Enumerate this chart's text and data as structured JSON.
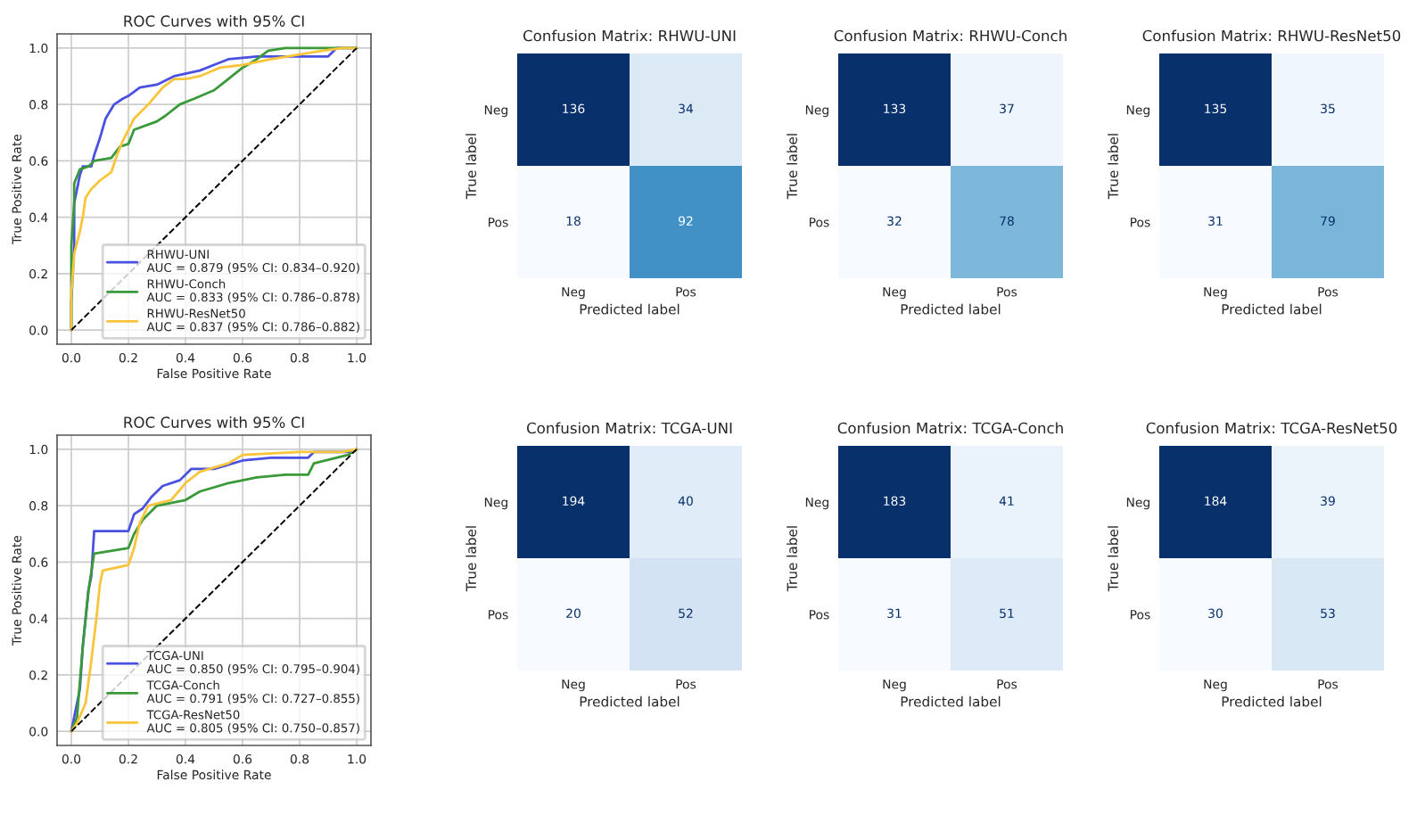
{
  "chart_data": [
    {
      "type": "line",
      "title": "ROC Curves with 95% CI",
      "xlabel": "False Positive Rate",
      "ylabel": "True Positive Rate",
      "xlim": [
        -0.05,
        1.05
      ],
      "ylim": [
        -0.05,
        1.05
      ],
      "xticks": [
        {
          "value": 0,
          "label": "0.0"
        },
        {
          "value": 0.2,
          "label": "0.2"
        },
        {
          "value": 0.4,
          "label": "0.4"
        },
        {
          "value": 0.6,
          "label": "0.6"
        },
        {
          "value": 0.8,
          "label": "0.8"
        },
        {
          "value": 1,
          "label": "1.0"
        }
      ],
      "yticks": [
        {
          "value": 0,
          "label": "0.0"
        },
        {
          "value": 0.2,
          "label": "0.2"
        },
        {
          "value": 0.4,
          "label": "0.4"
        },
        {
          "value": 0.6,
          "label": "0.6"
        },
        {
          "value": 0.8,
          "label": "0.8"
        },
        {
          "value": 1,
          "label": "1.0"
        }
      ],
      "grid": true,
      "legend": "bottom right",
      "series": [
        {
          "name": "RHWU-UNI\nAUC = 0.879 (95% CI: 0.834–0.920)",
          "color": "#4a50e0",
          "x": [
            0,
            0,
            0.01,
            0.01,
            0.02,
            0.03,
            0.04,
            0.07,
            0.08,
            0.1,
            0.12,
            0.15,
            0.18,
            0.2,
            0.24,
            0.3,
            0.36,
            0.45,
            0.5,
            0.55,
            0.65,
            0.8,
            0.9,
            0.93,
            1
          ],
          "values": [
            0,
            0.1,
            0.3,
            0.45,
            0.5,
            0.55,
            0.58,
            0.58,
            0.62,
            0.68,
            0.75,
            0.8,
            0.82,
            0.83,
            0.86,
            0.87,
            0.9,
            0.92,
            0.94,
            0.96,
            0.97,
            0.97,
            0.97,
            1,
            1
          ]
        },
        {
          "name": "RHWU-Conch\nAUC = 0.833 (95% CI: 0.786–0.878)",
          "color": "#3a9a3a",
          "x": [
            0,
            0,
            0.01,
            0.01,
            0.03,
            0.06,
            0.08,
            0.14,
            0.17,
            0.2,
            0.22,
            0.3,
            0.33,
            0.38,
            0.43,
            0.5,
            0.55,
            0.6,
            0.65,
            0.69,
            0.75,
            1
          ],
          "values": [
            0,
            0.3,
            0.45,
            0.52,
            0.57,
            0.58,
            0.6,
            0.61,
            0.65,
            0.66,
            0.71,
            0.74,
            0.76,
            0.8,
            0.82,
            0.85,
            0.89,
            0.93,
            0.96,
            0.99,
            1,
            1
          ]
        },
        {
          "name": "RHWU-ResNet50\nAUC = 0.837 (95% CI: 0.786–0.882)",
          "color": "#f8c53a",
          "x": [
            0,
            0,
            0.01,
            0.03,
            0.04,
            0.05,
            0.07,
            0.1,
            0.14,
            0.16,
            0.18,
            0.2,
            0.22,
            0.27,
            0.32,
            0.36,
            0.4,
            0.45,
            0.52,
            0.6,
            0.7,
            0.88,
            0.95,
            1
          ],
          "values": [
            0,
            0.13,
            0.27,
            0.35,
            0.4,
            0.47,
            0.5,
            0.53,
            0.56,
            0.62,
            0.67,
            0.71,
            0.75,
            0.8,
            0.86,
            0.89,
            0.89,
            0.9,
            0.93,
            0.94,
            0.96,
            0.99,
            1,
            1
          ]
        },
        {
          "color": "#000000",
          "line_style": "dashed",
          "x": [
            0,
            1
          ],
          "values": [
            0,
            1
          ]
        }
      ]
    },
    {
      "type": "heatmap",
      "title": "Confusion Matrix: RHWU-UNI",
      "xlabel": "Predicted label",
      "ylabel": "True label",
      "categories": [
        "Neg",
        "Pos"
      ],
      "y_categories": [
        "Neg",
        "Pos"
      ],
      "cells": [
        [
          136,
          34
        ],
        [
          18,
          92
        ]
      ],
      "data_labels": true
    },
    {
      "type": "heatmap",
      "title": "Confusion Matrix: RHWU-Conch",
      "xlabel": "Predicted label",
      "ylabel": "True label",
      "categories": [
        "Neg",
        "Pos"
      ],
      "y_categories": [
        "Neg",
        "Pos"
      ],
      "cells": [
        [
          133,
          37
        ],
        [
          32,
          78
        ]
      ],
      "data_labels": true
    },
    {
      "type": "heatmap",
      "title": "Confusion Matrix: RHWU-ResNet50",
      "xlabel": "Predicted label",
      "ylabel": "True label",
      "categories": [
        "Neg",
        "Pos"
      ],
      "y_categories": [
        "Neg",
        "Pos"
      ],
      "cells": [
        [
          135,
          35
        ],
        [
          31,
          79
        ]
      ],
      "data_labels": true
    },
    {
      "type": "line",
      "title": "ROC Curves with 95% CI",
      "xlabel": "False Positive Rate",
      "ylabel": "True Positive Rate",
      "xlim": [
        -0.05,
        1.05
      ],
      "ylim": [
        -0.05,
        1.05
      ],
      "xticks": [
        {
          "value": 0,
          "label": "0.0"
        },
        {
          "value": 0.2,
          "label": "0.2"
        },
        {
          "value": 0.4,
          "label": "0.4"
        },
        {
          "value": 0.6,
          "label": "0.6"
        },
        {
          "value": 0.8,
          "label": "0.8"
        },
        {
          "value": 1,
          "label": "1.0"
        }
      ],
      "yticks": [
        {
          "value": 0,
          "label": "0.0"
        },
        {
          "value": 0.2,
          "label": "0.2"
        },
        {
          "value": 0.4,
          "label": "0.4"
        },
        {
          "value": 0.6,
          "label": "0.6"
        },
        {
          "value": 0.8,
          "label": "0.8"
        },
        {
          "value": 1,
          "label": "1.0"
        }
      ],
      "grid": true,
      "legend": "bottom right",
      "series": [
        {
          "name": "TCGA-UNI\nAUC = 0.850 (95% CI: 0.795–0.904)",
          "color": "#4a50e0",
          "x": [
            0,
            0.01,
            0.03,
            0.04,
            0.05,
            0.06,
            0.07,
            0.08,
            0.2,
            0.22,
            0.25,
            0.28,
            0.32,
            0.38,
            0.42,
            0.5,
            0.6,
            0.7,
            0.83,
            0.85,
            0.98,
            1
          ],
          "values": [
            0,
            0.05,
            0.15,
            0.3,
            0.4,
            0.5,
            0.55,
            0.71,
            0.71,
            0.77,
            0.79,
            0.83,
            0.87,
            0.89,
            0.93,
            0.93,
            0.96,
            0.97,
            0.97,
            0.99,
            0.99,
            1
          ]
        },
        {
          "name": "TCGA-Conch\nAUC = 0.791 (95% CI: 0.727–0.855)",
          "color": "#3a9a3a",
          "x": [
            0,
            0.02,
            0.04,
            0.06,
            0.08,
            0.2,
            0.22,
            0.25,
            0.3,
            0.4,
            0.45,
            0.55,
            0.65,
            0.75,
            0.83,
            0.85,
            0.97,
            1
          ],
          "values": [
            0,
            0.05,
            0.3,
            0.5,
            0.63,
            0.65,
            0.7,
            0.75,
            0.8,
            0.82,
            0.85,
            0.88,
            0.9,
            0.91,
            0.91,
            0.95,
            0.98,
            1
          ]
        },
        {
          "name": "TCGA-ResNet50\nAUC = 0.805 (95% CI: 0.750–0.857)",
          "color": "#f8c53a",
          "x": [
            0,
            0.02,
            0.05,
            0.07,
            0.09,
            0.1,
            0.11,
            0.2,
            0.22,
            0.24,
            0.27,
            0.35,
            0.4,
            0.45,
            0.55,
            0.6,
            0.8,
            0.95,
            1
          ],
          "values": [
            0,
            0.03,
            0.1,
            0.25,
            0.42,
            0.52,
            0.57,
            0.59,
            0.65,
            0.74,
            0.8,
            0.82,
            0.88,
            0.92,
            0.95,
            0.98,
            0.99,
            0.99,
            1
          ]
        },
        {
          "color": "#000000",
          "line_style": "dashed",
          "x": [
            0,
            1
          ],
          "values": [
            0,
            1
          ]
        }
      ]
    },
    {
      "type": "heatmap",
      "title": "Confusion Matrix: TCGA-UNI",
      "xlabel": "Predicted label",
      "ylabel": "True label",
      "categories": [
        "Neg",
        "Pos"
      ],
      "y_categories": [
        "Neg",
        "Pos"
      ],
      "cells": [
        [
          194,
          40
        ],
        [
          20,
          52
        ]
      ],
      "data_labels": true
    },
    {
      "type": "heatmap",
      "title": "Confusion Matrix: TCGA-Conch",
      "xlabel": "Predicted label",
      "ylabel": "True label",
      "categories": [
        "Neg",
        "Pos"
      ],
      "y_categories": [
        "Neg",
        "Pos"
      ],
      "cells": [
        [
          183,
          41
        ],
        [
          31,
          51
        ]
      ],
      "data_labels": true
    },
    {
      "type": "heatmap",
      "title": "Confusion Matrix: TCGA-ResNet50",
      "xlabel": "Predicted label",
      "ylabel": "True label",
      "categories": [
        "Neg",
        "Pos"
      ],
      "y_categories": [
        "Neg",
        "Pos"
      ],
      "cells": [
        [
          184,
          39
        ],
        [
          30,
          53
        ]
      ],
      "data_labels": true
    }
  ]
}
